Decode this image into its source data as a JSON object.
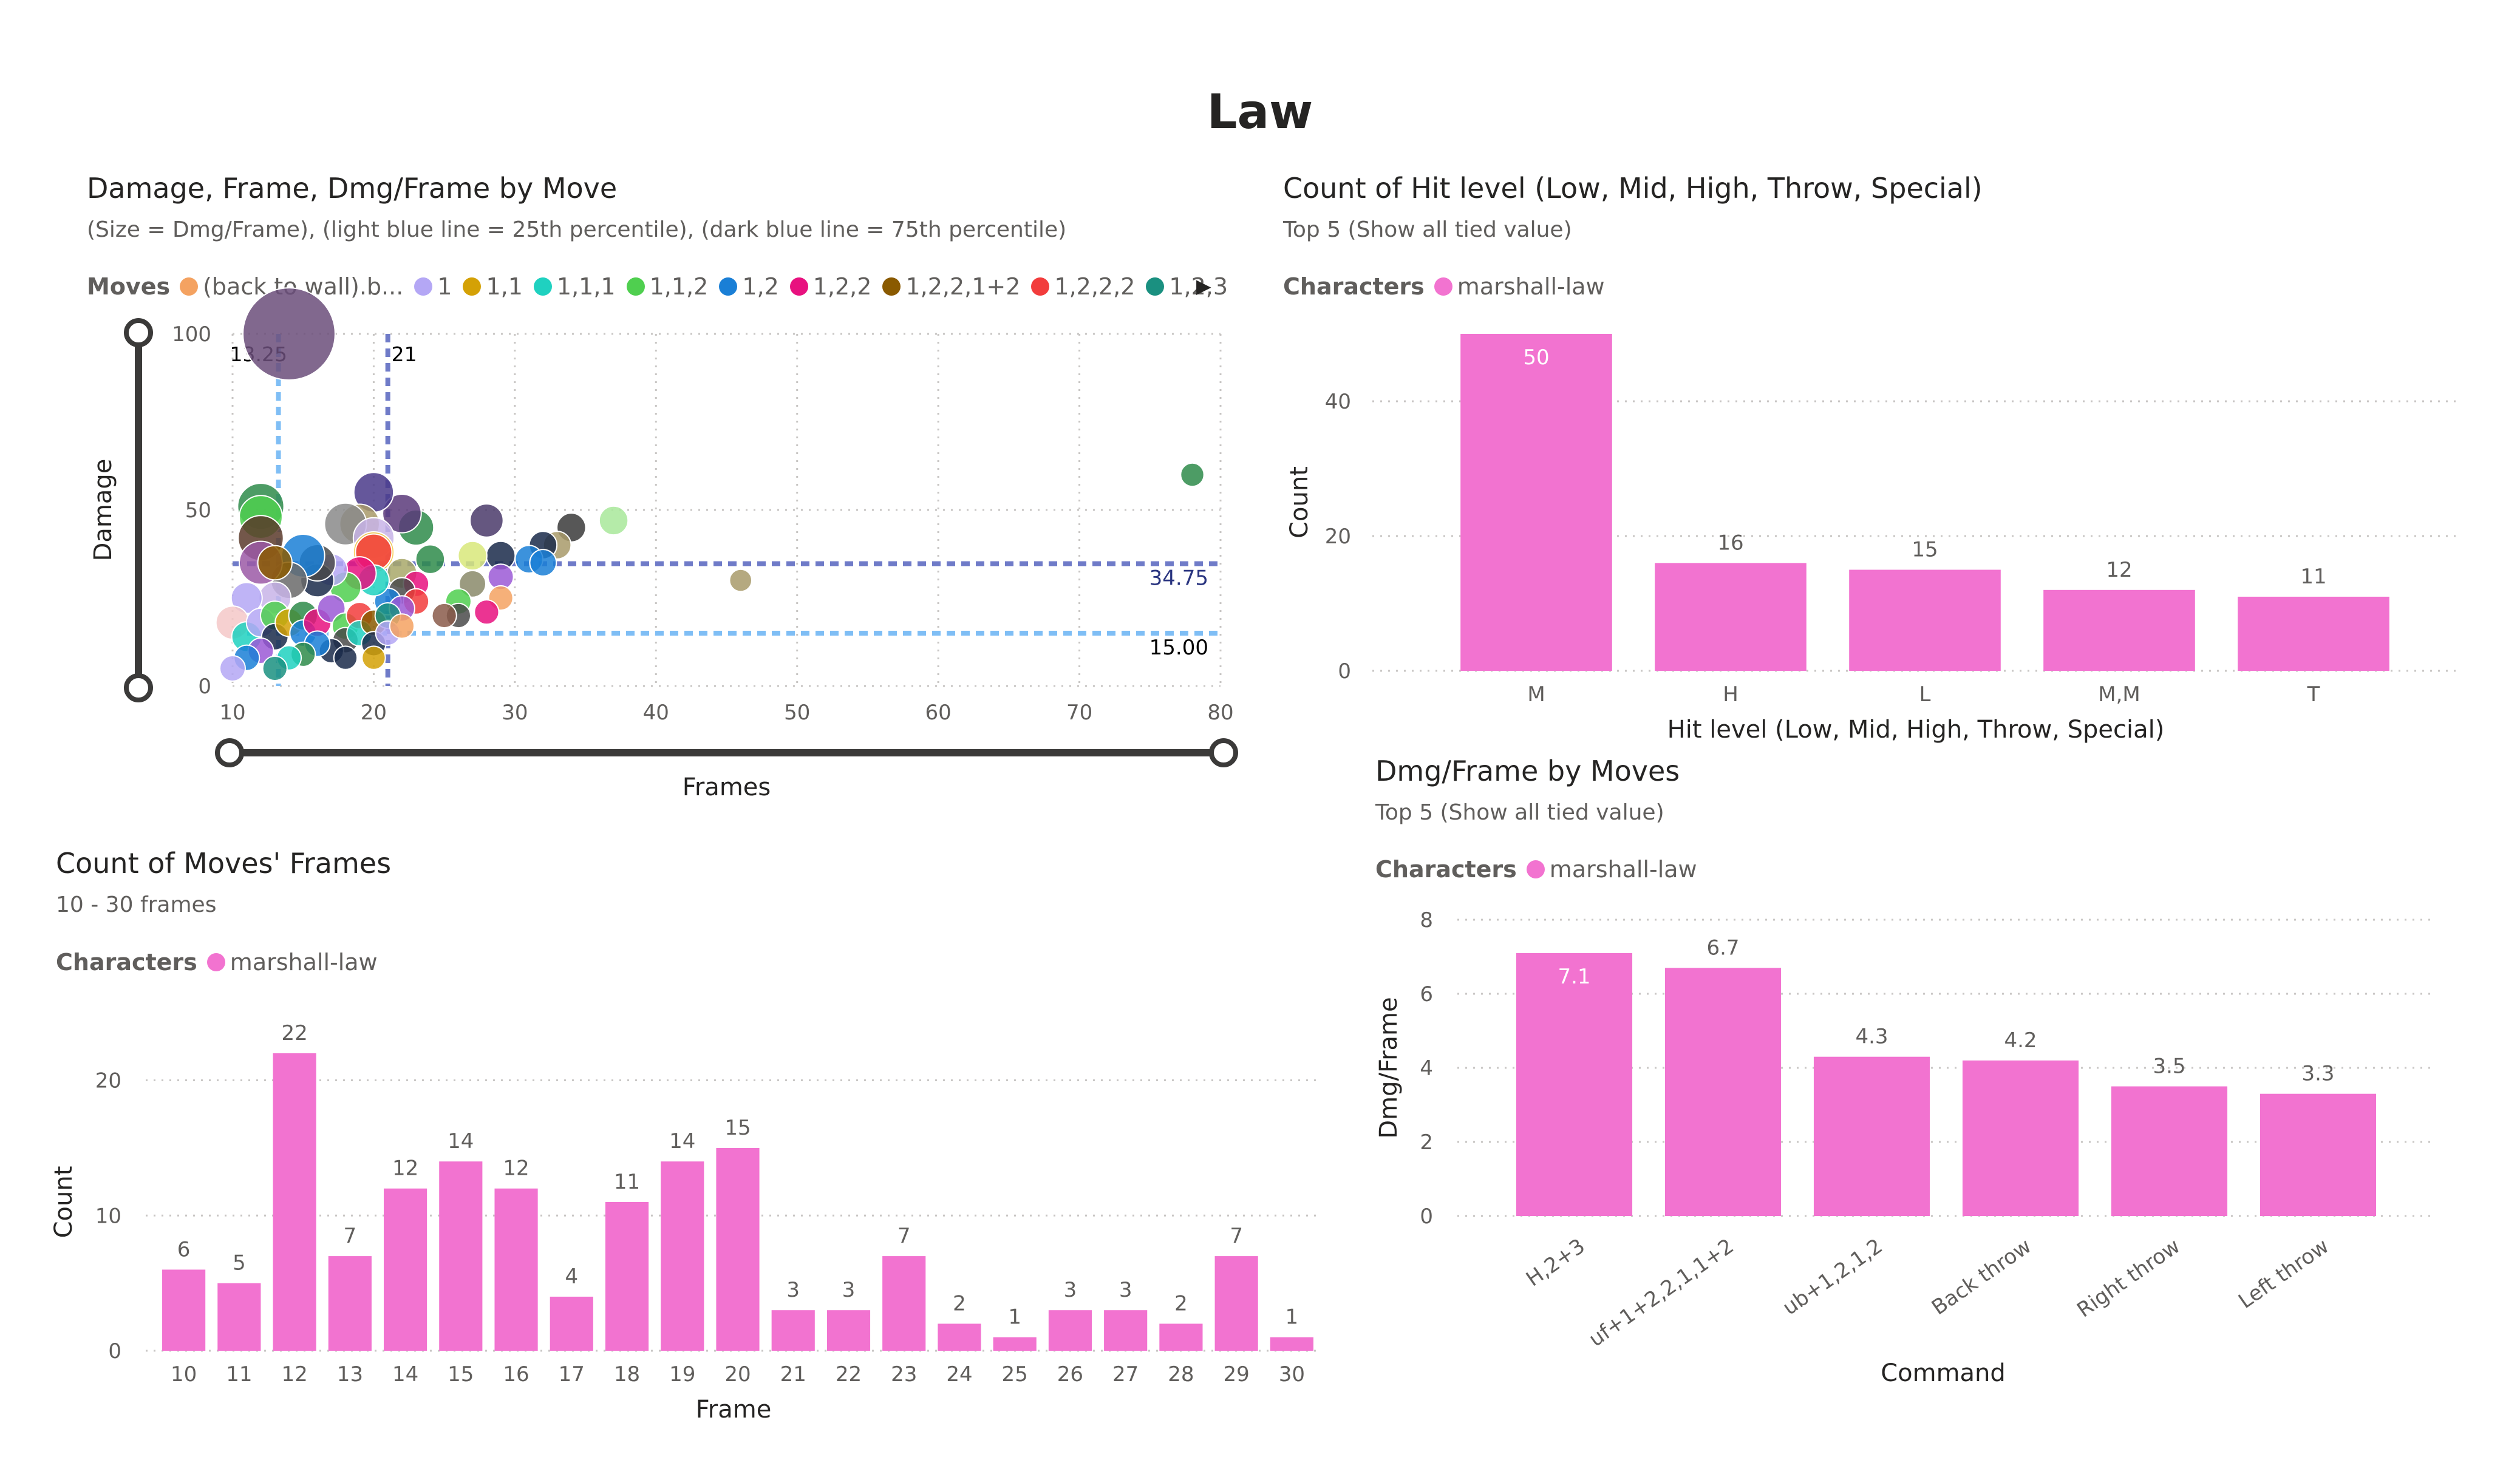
{
  "page": {
    "title": "Law"
  },
  "scatter": {
    "title": "Damage, Frame, Dmg/Frame by Move",
    "subtitle": "(Size = Dmg/Frame), (light blue line = 25th percentile), (dark blue line = 75th percentile)",
    "legend_title": "Moves",
    "legend_items": [
      {
        "label": "(back to wall).b...",
        "color": "#f4a261"
      },
      {
        "label": "1",
        "color": "#b4a7f5"
      },
      {
        "label": "1,1",
        "color": "#d4a106"
      },
      {
        "label": "1,1,1",
        "color": "#1fd1c0"
      },
      {
        "label": "1,1,2",
        "color": "#4fcf4f"
      },
      {
        "label": "1,2",
        "color": "#1a7fd6"
      },
      {
        "label": "1,2,2",
        "color": "#e8117f"
      },
      {
        "label": "1,2,2,1+2",
        "color": "#8a5a00"
      },
      {
        "label": "1,2,2,2",
        "color": "#f23c3c"
      },
      {
        "label": "1,2,3",
        "color": "#1a9080"
      }
    ]
  },
  "hit_level": {
    "title": "Count of Hit level (Low, Mid, High, Throw, Special)",
    "subtitle": "Top 5 (Show all tied value)",
    "legend_title": "Characters",
    "legend_item": "marshall-law",
    "legend_color": "#f273d0"
  },
  "dmg_frame": {
    "title": "Dmg/Frame by Moves",
    "subtitle": "Top 5 (Show all tied value)",
    "legend_title": "Characters",
    "legend_item": "marshall-law",
    "legend_color": "#f273d0"
  },
  "frames_count": {
    "title": "Count of Moves' Frames",
    "subtitle": "10 - 30 frames",
    "legend_title": "Characters",
    "legend_item": "marshall-law",
    "legend_color": "#f273d0"
  },
  "chart_data": [
    {
      "id": "scatter",
      "type": "scatter",
      "xlabel": "Frames",
      "ylabel": "Damage",
      "xlim": [
        10,
        80
      ],
      "ylim": [
        0,
        100
      ],
      "x_ticks": [
        10,
        20,
        30,
        40,
        50,
        60,
        70,
        80
      ],
      "y_ticks": [
        0,
        50,
        100
      ],
      "grid": true,
      "size_field": "Dmg/Frame",
      "reference_lines": [
        {
          "axis": "x",
          "value": 13.25,
          "label": "13.25",
          "color": "#7fbef5"
        },
        {
          "axis": "x",
          "value": 21,
          "label": "21",
          "color": "#6f7bc8"
        },
        {
          "axis": "y",
          "value": 34.75,
          "label": "34.75",
          "color": "#6f7bc8"
        },
        {
          "axis": "y",
          "value": 15,
          "label": "15.00",
          "color": "#7fbef5"
        }
      ],
      "points": [
        {
          "x": 14,
          "y": 100,
          "size": 7.1,
          "color": "#6b4e7a"
        },
        {
          "x": 78,
          "y": 60,
          "size": 0.8,
          "color": "#2e8b4a"
        },
        {
          "x": 46,
          "y": 30,
          "size": 0.7,
          "color": "#a89a6a"
        },
        {
          "x": 37,
          "y": 47,
          "size": 1.3,
          "color": "#a8e89a"
        },
        {
          "x": 34,
          "y": 45,
          "size": 1.3,
          "color": "#3a3a3a"
        },
        {
          "x": 33,
          "y": 40,
          "size": 1.2,
          "color": "#a89a6a"
        },
        {
          "x": 32,
          "y": 40,
          "size": 1.2,
          "color": "#1a2a4a"
        },
        {
          "x": 31,
          "y": 36,
          "size": 1.2,
          "color": "#1a7fd6"
        },
        {
          "x": 32,
          "y": 35,
          "size": 1.1,
          "color": "#1a7fd6"
        },
        {
          "x": 28,
          "y": 47,
          "size": 1.7,
          "color": "#4a3a6a"
        },
        {
          "x": 29,
          "y": 37,
          "size": 1.3,
          "color": "#1a2a4a"
        },
        {
          "x": 27,
          "y": 37,
          "size": 1.3,
          "color": "#d8e87a"
        },
        {
          "x": 29,
          "y": 31,
          "size": 1.0,
          "color": "#9b59d6"
        },
        {
          "x": 27,
          "y": 29,
          "size": 1.1,
          "color": "#8a8a6a"
        },
        {
          "x": 29,
          "y": 25,
          "size": 0.9,
          "color": "#f4a261"
        },
        {
          "x": 28,
          "y": 21,
          "size": 0.9,
          "color": "#e8117f"
        },
        {
          "x": 26,
          "y": 24,
          "size": 1.0,
          "color": "#4fcf4f"
        },
        {
          "x": 26,
          "y": 20,
          "size": 0.9,
          "color": "#4a4a4a"
        },
        {
          "x": 25,
          "y": 20,
          "size": 0.9,
          "color": "#8a5a4a"
        },
        {
          "x": 24,
          "y": 36,
          "size": 1.3,
          "color": "#2e8b4a"
        },
        {
          "x": 23,
          "y": 45,
          "size": 1.9,
          "color": "#2e8b4a"
        },
        {
          "x": 22,
          "y": 49,
          "size": 2.2,
          "color": "#5a3a7a"
        },
        {
          "x": 20,
          "y": 55,
          "size": 2.3,
          "color": "#4a3a8a"
        },
        {
          "x": 19,
          "y": 46,
          "size": 2.3,
          "color": "#a89a6a"
        },
        {
          "x": 18,
          "y": 46,
          "size": 2.5,
          "color": "#8a8a8a"
        },
        {
          "x": 20,
          "y": 42,
          "size": 2.4,
          "color": "#c8b4e8"
        },
        {
          "x": 20,
          "y": 38,
          "size": 2.4,
          "color": "#f4c842"
        },
        {
          "x": 20,
          "y": 38,
          "size": 2.0,
          "color": "#f23c3c"
        },
        {
          "x": 22,
          "y": 32,
          "size": 1.4,
          "color": "#a8a86a"
        },
        {
          "x": 23,
          "y": 29,
          "size": 1.0,
          "color": "#e8117f"
        },
        {
          "x": 22,
          "y": 27,
          "size": 1.1,
          "color": "#4a4a4a"
        },
        {
          "x": 23,
          "y": 24,
          "size": 1.0,
          "color": "#f23c3c"
        },
        {
          "x": 21,
          "y": 24,
          "size": 1.1,
          "color": "#1a7fd6"
        },
        {
          "x": 22,
          "y": 22,
          "size": 1.0,
          "color": "#9b59d6"
        },
        {
          "x": 20,
          "y": 30,
          "size": 1.5,
          "color": "#1fd1c0"
        },
        {
          "x": 19,
          "y": 32,
          "size": 1.7,
          "color": "#e8117f"
        },
        {
          "x": 18,
          "y": 28,
          "size": 1.5,
          "color": "#4fcf4f"
        },
        {
          "x": 17,
          "y": 33,
          "size": 1.6,
          "color": "#b4a7f5"
        },
        {
          "x": 16,
          "y": 30,
          "size": 1.7,
          "color": "#1a2a4a"
        },
        {
          "x": 16,
          "y": 35,
          "size": 2.0,
          "color": "#4a4a4a"
        },
        {
          "x": 15,
          "y": 37,
          "size": 2.6,
          "color": "#1a7fd6"
        },
        {
          "x": 14,
          "y": 30,
          "size": 2.0,
          "color": "#6a6a6a"
        },
        {
          "x": 13,
          "y": 25,
          "size": 1.6,
          "color": "#c8b4e8"
        },
        {
          "x": 12,
          "y": 51,
          "size": 2.9,
          "color": "#2e8b4a"
        },
        {
          "x": 12,
          "y": 48,
          "size": 2.6,
          "color": "#4fcf4f"
        },
        {
          "x": 12,
          "y": 42,
          "size": 2.8,
          "color": "#5a3a2a"
        },
        {
          "x": 12,
          "y": 35,
          "size": 2.6,
          "color": "#9b59a6"
        },
        {
          "x": 13,
          "y": 35,
          "size": 1.8,
          "color": "#8a5a00"
        },
        {
          "x": 11,
          "y": 25,
          "size": 1.5,
          "color": "#b4a7f5"
        },
        {
          "x": 10,
          "y": 18,
          "size": 1.7,
          "color": "#f4c8c8"
        },
        {
          "x": 11,
          "y": 14,
          "size": 1.4,
          "color": "#1fd1c0"
        },
        {
          "x": 12,
          "y": 18,
          "size": 1.3,
          "color": "#b4a7f5"
        },
        {
          "x": 13,
          "y": 20,
          "size": 1.3,
          "color": "#4fcf4f"
        },
        {
          "x": 13,
          "y": 14,
          "size": 1.1,
          "color": "#1a2a4a"
        },
        {
          "x": 14,
          "y": 18,
          "size": 1.2,
          "color": "#d4a106"
        },
        {
          "x": 15,
          "y": 20,
          "size": 1.3,
          "color": "#2e8b4a"
        },
        {
          "x": 15,
          "y": 15,
          "size": 1.1,
          "color": "#1a7fd6"
        },
        {
          "x": 16,
          "y": 18,
          "size": 1.2,
          "color": "#e8117f"
        },
        {
          "x": 17,
          "y": 22,
          "size": 1.2,
          "color": "#9b59d6"
        },
        {
          "x": 18,
          "y": 17,
          "size": 1.1,
          "color": "#4fcf4f"
        },
        {
          "x": 18,
          "y": 13,
          "size": 1.0,
          "color": "#4a4a4a"
        },
        {
          "x": 19,
          "y": 20,
          "size": 1.1,
          "color": "#f23c3c"
        },
        {
          "x": 19,
          "y": 15,
          "size": 1.0,
          "color": "#1fd1c0"
        },
        {
          "x": 20,
          "y": 18,
          "size": 1.0,
          "color": "#8a5a00"
        },
        {
          "x": 20,
          "y": 12,
          "size": 0.9,
          "color": "#1a2a4a"
        },
        {
          "x": 21,
          "y": 20,
          "size": 1.0,
          "color": "#1a9080"
        },
        {
          "x": 21,
          "y": 15,
          "size": 0.9,
          "color": "#b4a7f5"
        },
        {
          "x": 22,
          "y": 17,
          "size": 0.9,
          "color": "#f4a261"
        },
        {
          "x": 17,
          "y": 10,
          "size": 0.9,
          "color": "#1a2a4a"
        },
        {
          "x": 16,
          "y": 12,
          "size": 1.0,
          "color": "#1a7fd6"
        },
        {
          "x": 15,
          "y": 9,
          "size": 0.9,
          "color": "#2e8b4a"
        },
        {
          "x": 14,
          "y": 8,
          "size": 0.9,
          "color": "#1fd1c0"
        },
        {
          "x": 12,
          "y": 10,
          "size": 1.0,
          "color": "#9b59d6"
        },
        {
          "x": 11,
          "y": 8,
          "size": 1.0,
          "color": "#1a7fd6"
        },
        {
          "x": 10,
          "y": 5,
          "size": 1.0,
          "color": "#b4a7f5"
        },
        {
          "x": 18,
          "y": 8,
          "size": 0.8,
          "color": "#1a2a4a"
        },
        {
          "x": 20,
          "y": 8,
          "size": 0.8,
          "color": "#d4a106"
        },
        {
          "x": 13,
          "y": 5,
          "size": 0.9,
          "color": "#1a9080"
        }
      ]
    },
    {
      "id": "hit_level",
      "type": "bar",
      "categories": [
        "M",
        "H",
        "L",
        "M,M",
        "T"
      ],
      "values": [
        50,
        16,
        15,
        12,
        11
      ],
      "xlabel": "Hit level (Low, Mid, High, Throw, Special)",
      "ylabel": "Count",
      "ylim": [
        0,
        50
      ],
      "y_ticks": [
        0,
        20,
        40
      ],
      "grid": true
    },
    {
      "id": "dmg_frame",
      "type": "bar",
      "categories": [
        "H,2+3",
        "uf+1+2,2,1,1+2",
        "ub+1,2,1,2",
        "Back throw",
        "Right throw",
        "Left throw"
      ],
      "values": [
        7.1,
        6.7,
        4.3,
        4.2,
        3.5,
        3.3
      ],
      "xlabel": "Command",
      "ylabel": "Dmg/Frame",
      "ylim": [
        0,
        8
      ],
      "y_ticks": [
        0,
        2,
        4,
        6,
        8
      ],
      "grid": true
    },
    {
      "id": "frames_count",
      "type": "bar",
      "categories": [
        "10",
        "11",
        "12",
        "13",
        "14",
        "15",
        "16",
        "17",
        "18",
        "19",
        "20",
        "21",
        "22",
        "23",
        "24",
        "25",
        "26",
        "27",
        "28",
        "29",
        "30"
      ],
      "values": [
        6,
        5,
        22,
        7,
        12,
        14,
        12,
        4,
        11,
        14,
        15,
        3,
        3,
        7,
        2,
        1,
        3,
        3,
        2,
        7,
        1
      ],
      "xlabel": "Frame",
      "ylabel": "Count",
      "ylim": [
        0,
        22
      ],
      "y_ticks": [
        0,
        10,
        20
      ],
      "grid": true
    }
  ]
}
